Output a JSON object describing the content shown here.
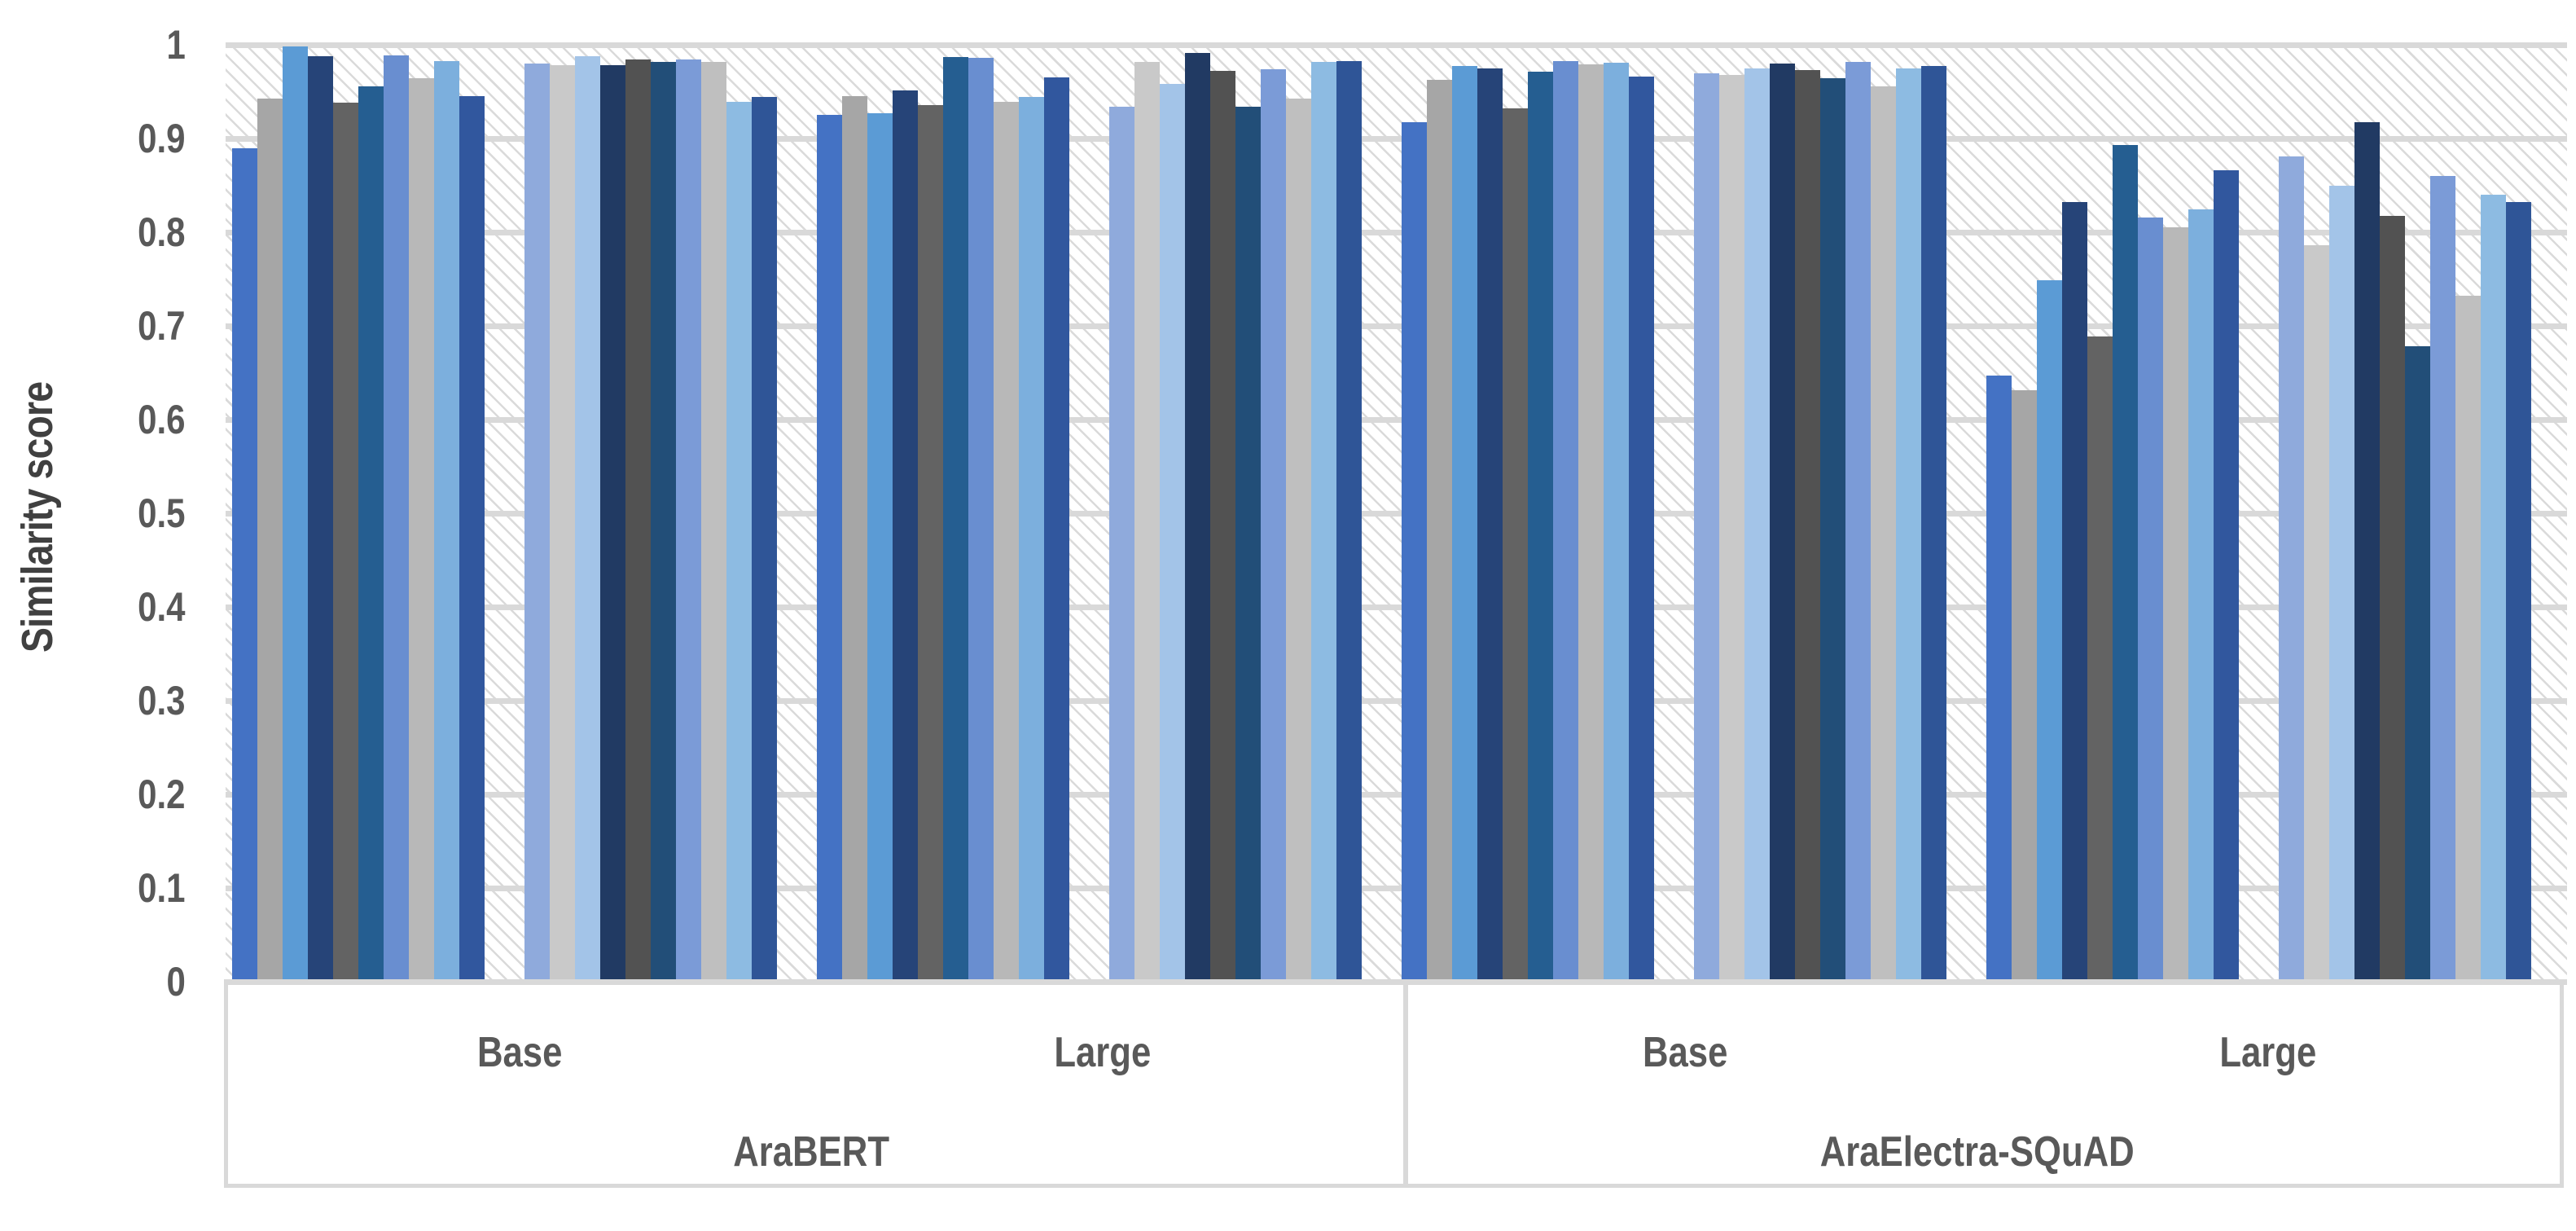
{
  "chart_data": {
    "type": "bar",
    "title": "",
    "ylabel": "Similarity score",
    "xlabel": "",
    "ylim": [
      0,
      1
    ],
    "grid": true,
    "legend": "none",
    "plot_background": "diagonal-hatch",
    "gridline_color": "#d9d9d9",
    "axis_text_color": "#595959",
    "ytick_values": [
      1,
      0.9,
      0.8,
      0.7,
      0.6,
      0.5,
      0.4,
      0.3,
      0.2,
      0.1,
      0
    ],
    "ytick_labels": [
      "1",
      "0.9",
      "0.8",
      "0.7",
      "0.6",
      "0.5",
      "0.4",
      "0.3",
      "0.2",
      "0.1",
      "0"
    ],
    "palette_set1": [
      "#4472C4",
      "#A6A6A6",
      "#5B9BD5",
      "#264478",
      "#636363",
      "#255E91",
      "#698ED0",
      "#B8B8B8",
      "#7CAFDD",
      "#31579E"
    ],
    "palette_set2": [
      "#8FAADC",
      "#C9C9C9",
      "#A3C4E8",
      "#213A63",
      "#525252",
      "#224E78",
      "#7B9BD7",
      "#BFBFBF",
      "#8DBBE2",
      "#2F5597"
    ],
    "groups": [
      {
        "model": "AraBERT",
        "size": "Base",
        "values_set1": [
          0.89,
          0.943,
          0.998,
          0.988,
          0.938,
          0.956,
          0.989,
          0.964,
          0.983,
          0.945
        ],
        "values_set2": [
          0.98,
          0.978,
          0.988,
          0.978,
          0.984,
          0.982,
          0.984,
          0.982,
          0.939,
          0.944
        ]
      },
      {
        "model": "AraBERT",
        "size": "Large",
        "values_set1": [
          0.925,
          0.945,
          0.927,
          0.951,
          0.936,
          0.987,
          0.986,
          0.939,
          0.944,
          0.965
        ],
        "values_set2": [
          0.934,
          0.982,
          0.958,
          0.991,
          0.972,
          0.934,
          0.974,
          0.943,
          0.982,
          0.983
        ]
      },
      {
        "model": "AraElectra-SQuAD",
        "size": "Base",
        "values_set1": [
          0.917,
          0.963,
          0.977,
          0.975,
          0.932,
          0.971,
          0.983,
          0.979,
          0.981,
          0.966
        ],
        "values_set2": [
          0.97,
          0.968,
          0.975,
          0.98,
          0.973,
          0.964,
          0.982,
          0.956,
          0.975,
          0.977
        ]
      },
      {
        "model": "AraElectra-SQuAD",
        "size": "Large",
        "values_set1": [
          0.647,
          0.631,
          0.749,
          0.832,
          0.689,
          0.893,
          0.816,
          0.805,
          0.824,
          0.866
        ],
        "values_set2": [
          0.881,
          0.786,
          0.85,
          0.917,
          0.817,
          0.678,
          0.86,
          0.732,
          0.84,
          0.832
        ]
      }
    ],
    "axis_labels": {
      "size_row": [
        "Base",
        "Large",
        "Base",
        "Large"
      ],
      "model_row": [
        "AraBERT",
        "AraElectra-SQuAD"
      ]
    }
  }
}
